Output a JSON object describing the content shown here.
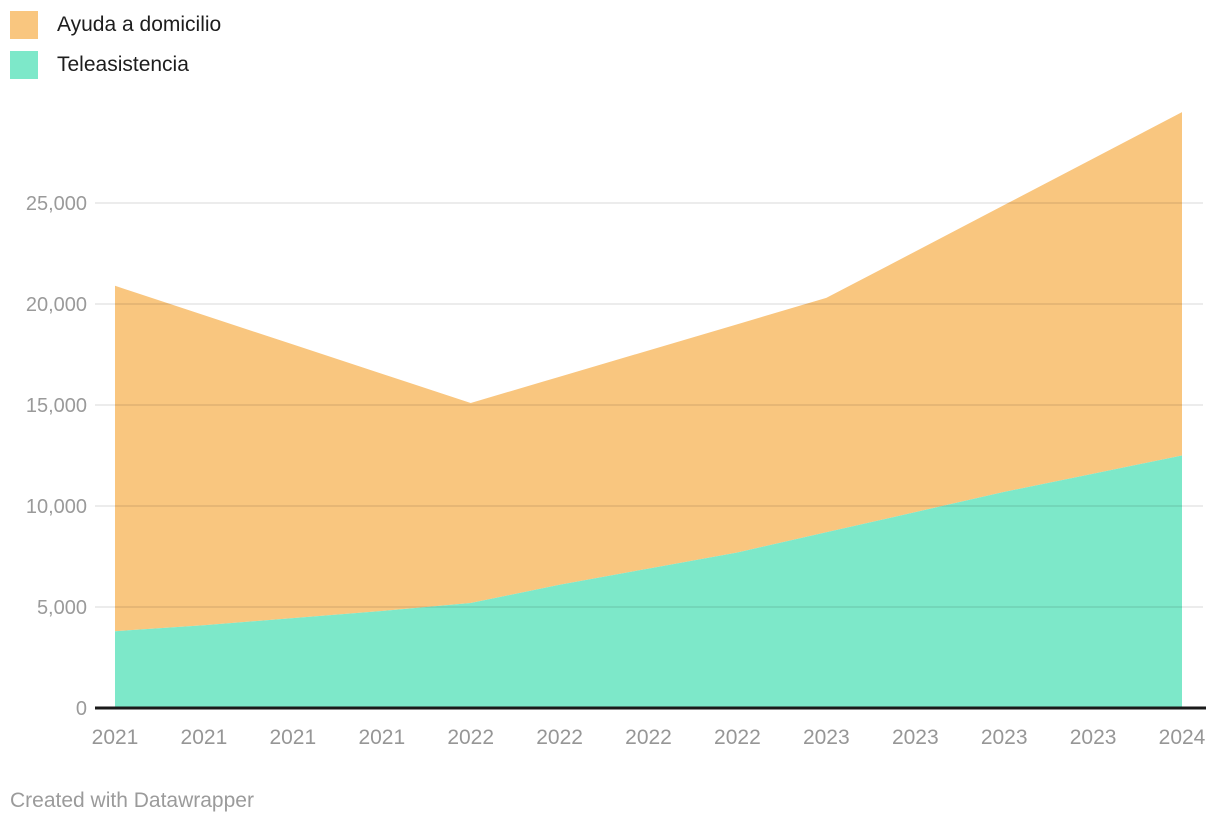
{
  "legend": {
    "items": [
      {
        "label": "Ayuda a domicilio",
        "color": "#F9C67F"
      },
      {
        "label": "Teleasistencia",
        "color": "#7DE8C9"
      }
    ]
  },
  "footer": {
    "text": "Created with Datawrapper"
  },
  "chart_data": {
    "type": "area",
    "stacked": true,
    "title": "",
    "xlabel": "",
    "ylabel": "",
    "categories": [
      "2021",
      "2021",
      "2021",
      "2021",
      "2022",
      "2022",
      "2022",
      "2022",
      "2023",
      "2023",
      "2023",
      "2023",
      "2024"
    ],
    "series": [
      {
        "name": "Ayuda a domicilio",
        "color": "#F9C67F",
        "values": [
          17100,
          15350,
          13550,
          11750,
          9900,
          10300,
          10800,
          11300,
          11600,
          12900,
          14200,
          15600,
          17000
        ]
      },
      {
        "name": "Teleasistencia",
        "color": "#7DE8C9",
        "values": [
          3800,
          4100,
          4450,
          4800,
          5200,
          6100,
          6900,
          7700,
          8700,
          9700,
          10700,
          11600,
          12500
        ]
      }
    ],
    "stacked_totals": [
      20900,
      19450,
      18000,
      16550,
      15100,
      16400,
      17700,
      19000,
      20300,
      22600,
      24900,
      27200,
      29500
    ],
    "y_ticks": [
      0,
      5000,
      10000,
      15000,
      20000,
      25000
    ],
    "y_tick_labels": [
      "0",
      "5,000",
      "10,000",
      "15,000",
      "20,000",
      "25,000"
    ],
    "ylim": [
      0,
      30000
    ],
    "grid": "horizontal",
    "legend_position": "top-left",
    "colors": {
      "axis_line": "#1a1a1a",
      "tick_label": "#969696",
      "gridline": "rgba(0,0,0,0.10)"
    }
  }
}
